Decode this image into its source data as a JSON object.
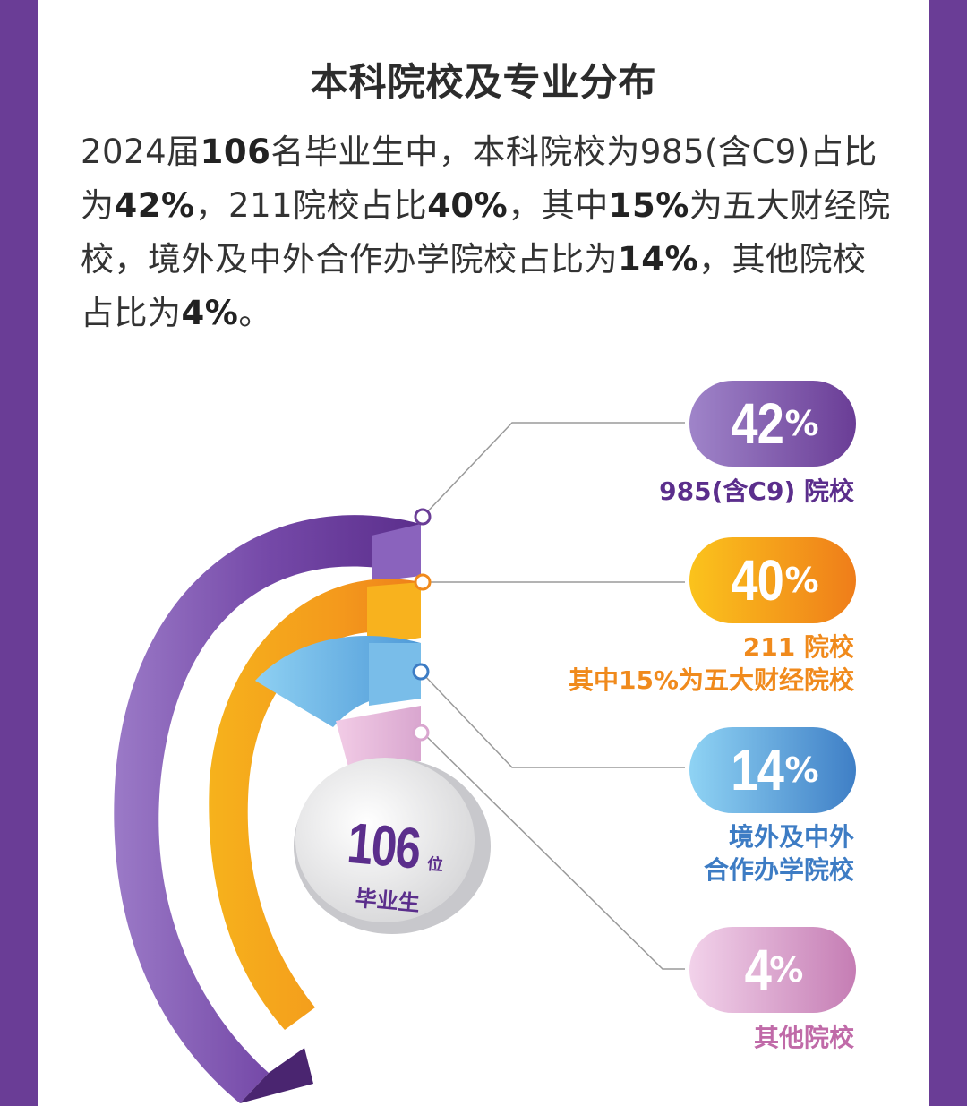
{
  "title": "本科院校及专业分布",
  "paragraph": {
    "p1": "2024届",
    "total": "106",
    "p2": "名毕业生中，本科院校为985(含C9)占比为",
    "v985": "42%",
    "p3": "，211院校占比",
    "v211": "40%",
    "p4": "，其中",
    "vfin": "15%",
    "p5": "为五大财经院校，境外及中外合作办学院校占比为",
    "vabroad": "14%",
    "p6": "，其他院校占比为",
    "vother": "4%",
    "p7": "。"
  },
  "center": {
    "number": "106",
    "unit": "位",
    "label": "毕业生"
  },
  "colors": {
    "purple": "#6a3d96",
    "orange": "#f08a1c",
    "blue": "#3d7cc4",
    "pink": "#c06aa8",
    "frame": "#6a3d96"
  },
  "chart_data": {
    "type": "pie",
    "title": "本科院校及专业分布",
    "categories": [
      "985(含C9) 院校",
      "211 院校",
      "境外及中外合作办学院校",
      "其他院校"
    ],
    "values": [
      42,
      40,
      14,
      4
    ],
    "unit": "%",
    "total_graduates": 106,
    "slices": [
      {
        "value": "42",
        "unit": "%",
        "label_lines": [
          "985(含C9) 院校"
        ],
        "color": "#6a3d96"
      },
      {
        "value": "40",
        "unit": "%",
        "label_lines": [
          "211 院校",
          "其中15%为五大财经院校"
        ],
        "color": "#f08a1c"
      },
      {
        "value": "14",
        "unit": "%",
        "label_lines": [
          "境外及中外",
          "合作办学院校"
        ],
        "color": "#3d7cc4"
      },
      {
        "value": "4",
        "unit": "%",
        "label_lines": [
          "其他院校"
        ],
        "color": "#c06aa8"
      }
    ]
  }
}
